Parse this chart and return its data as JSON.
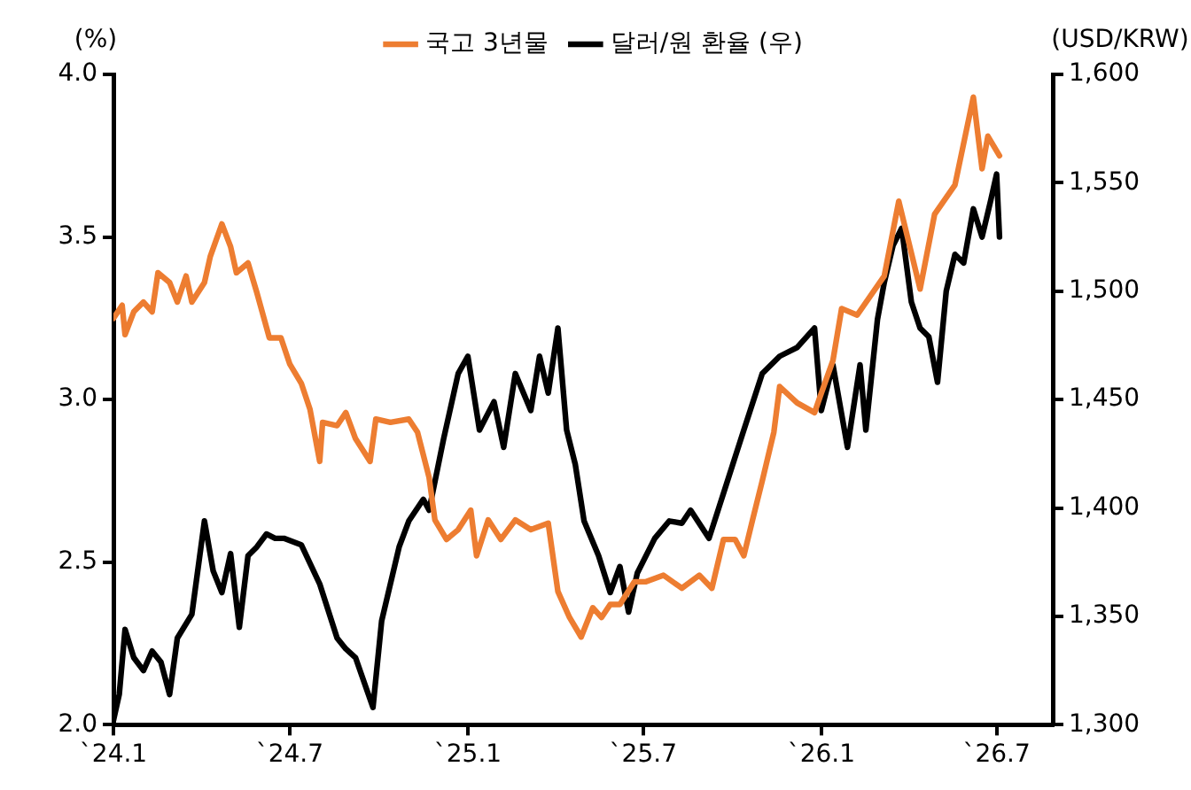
{
  "chart_data": {
    "type": "line",
    "ylabel": "(%)",
    "y2label": "(USD/KRW)",
    "legend": "top",
    "grid": false,
    "marker": "none",
    "line_style": "solid",
    "xlim": [
      "2024-01-01",
      "2026-08-28"
    ],
    "xticks": [
      {
        "value": "2024-01",
        "label": "`24.1"
      },
      {
        "value": "2024-07",
        "label": "`24.7"
      },
      {
        "value": "2025-01",
        "label": "`25.1"
      },
      {
        "value": "2025-07",
        "label": "`25.7"
      },
      {
        "value": "2026-01",
        "label": "`26.1"
      },
      {
        "value": "2026-07",
        "label": "`26.7"
      }
    ],
    "ylim": [
      2,
      4
    ],
    "yticks": [
      {
        "value": 2,
        "label": "2.0"
      },
      {
        "value": 2.5,
        "label": "2.5"
      },
      {
        "value": 3,
        "label": "3.0"
      },
      {
        "value": 3.5,
        "label": "3.5"
      },
      {
        "value": 4,
        "label": "4.0"
      }
    ],
    "y2lim": [
      1300,
      1600
    ],
    "y2ticks": [
      {
        "value": 1300,
        "label": "1,300"
      },
      {
        "value": 1350,
        "label": "1,350"
      },
      {
        "value": 1400,
        "label": "1,400"
      },
      {
        "value": 1450,
        "label": "1,450"
      },
      {
        "value": 1500,
        "label": "1,500"
      },
      {
        "value": 1550,
        "label": "1,550"
      },
      {
        "value": 1600,
        "label": "1,600"
      }
    ],
    "series": [
      {
        "name": "국고 3년물",
        "color": "#ed7d31",
        "x": [
          "2024-01-01",
          "2024-01-10",
          "2024-01-13",
          "2024-01-22",
          "2024-02-01",
          "2024-02-10",
          "2024-02-16",
          "2024-02-28",
          "2024-03-07",
          "2024-03-16",
          "2024-03-22",
          "2024-04-04",
          "2024-04-10",
          "2024-04-22",
          "2024-05-01",
          "2024-05-07",
          "2024-05-19",
          "2024-05-28",
          "2024-06-10",
          "2024-06-22",
          "2024-07-01",
          "2024-07-13",
          "2024-07-22",
          "2024-08-01",
          "2024-08-04",
          "2024-08-19",
          "2024-08-28",
          "2024-09-07",
          "2024-09-22",
          "2024-09-28",
          "2024-10-13",
          "2024-11-01",
          "2024-11-10",
          "2024-11-22",
          "2024-11-28",
          "2024-12-10",
          "2024-12-22",
          "2025-01-04",
          "2025-01-10",
          "2025-01-22",
          "2025-02-04",
          "2025-02-19",
          "2025-03-07",
          "2025-03-25",
          "2025-04-04",
          "2025-04-16",
          "2025-04-28",
          "2025-05-10",
          "2025-05-19",
          "2025-05-28",
          "2025-06-07",
          "2025-06-22",
          "2025-07-04",
          "2025-07-22",
          "2025-08-10",
          "2025-08-28",
          "2025-09-10",
          "2025-09-22",
          "2025-10-04",
          "2025-10-13",
          "2025-10-22",
          "2025-11-01",
          "2025-11-13",
          "2025-11-19",
          "2025-12-07",
          "2025-12-25",
          "2026-01-01",
          "2026-01-13",
          "2026-01-22",
          "2026-02-07",
          "2026-03-07",
          "2026-03-22",
          "2026-04-13",
          "2026-04-28",
          "2026-05-19",
          "2026-06-07",
          "2026-06-16",
          "2026-06-22",
          "2026-07-04"
        ],
        "values": [
          3.25,
          3.29,
          3.2,
          3.27,
          3.3,
          3.27,
          3.39,
          3.36,
          3.3,
          3.38,
          3.3,
          3.36,
          3.44,
          3.54,
          3.47,
          3.39,
          3.42,
          3.33,
          3.19,
          3.19,
          3.11,
          3.05,
          2.97,
          2.81,
          2.93,
          2.92,
          2.96,
          2.88,
          2.81,
          2.94,
          2.93,
          2.94,
          2.9,
          2.76,
          2.63,
          2.57,
          2.6,
          2.66,
          2.52,
          2.63,
          2.57,
          2.63,
          2.6,
          2.62,
          2.41,
          2.33,
          2.27,
          2.36,
          2.33,
          2.37,
          2.37,
          2.44,
          2.44,
          2.46,
          2.42,
          2.46,
          2.42,
          2.57,
          2.57,
          2.52,
          2.63,
          2.75,
          2.9,
          3.04,
          2.99,
          2.96,
          3.02,
          3.12,
          3.28,
          3.26,
          3.38,
          3.61,
          3.34,
          3.57,
          3.66,
          3.93,
          3.71,
          3.81,
          3.75
        ]
      },
      {
        "name": "달러/원 환율 (우)",
        "color": "#000000",
        "axis": "y2",
        "x": [
          "2024-01-01",
          "2024-01-07",
          "2024-01-13",
          "2024-01-22",
          "2024-02-01",
          "2024-02-10",
          "2024-02-19",
          "2024-02-28",
          "2024-03-07",
          "2024-03-22",
          "2024-04-04",
          "2024-04-13",
          "2024-04-22",
          "2024-05-01",
          "2024-05-10",
          "2024-05-19",
          "2024-05-28",
          "2024-06-07",
          "2024-06-16",
          "2024-06-25",
          "2024-07-13",
          "2024-08-01",
          "2024-08-19",
          "2024-08-28",
          "2024-09-07",
          "2024-09-25",
          "2024-10-04",
          "2024-10-22",
          "2024-11-01",
          "2024-11-16",
          "2024-11-22",
          "2024-12-07",
          "2024-12-22",
          "2025-01-01",
          "2025-01-13",
          "2025-01-28",
          "2025-02-07",
          "2025-02-19",
          "2025-03-07",
          "2025-03-16",
          "2025-03-25",
          "2025-04-04",
          "2025-04-13",
          "2025-04-22",
          "2025-05-01",
          "2025-05-16",
          "2025-05-28",
          "2025-06-07",
          "2025-06-16",
          "2025-06-25",
          "2025-07-13",
          "2025-07-28",
          "2025-08-10",
          "2025-08-19",
          "2025-09-07",
          "2025-09-25",
          "2025-10-13",
          "2025-11-01",
          "2025-11-19",
          "2025-12-07",
          "2025-12-25",
          "2026-01-01",
          "2026-01-13",
          "2026-01-28",
          "2026-02-10",
          "2026-02-16",
          "2026-02-28",
          "2026-03-07",
          "2026-03-16",
          "2026-03-25",
          "2026-04-04",
          "2026-04-13",
          "2026-04-22",
          "2026-05-01",
          "2026-05-10",
          "2026-05-19",
          "2026-05-28",
          "2026-06-07",
          "2026-06-16",
          "2026-06-25",
          "2026-07-01",
          "2026-07-04"
        ],
        "values": [
          1302,
          1314,
          1344,
          1331,
          1325,
          1334,
          1329,
          1314,
          1340,
          1351,
          1394,
          1371,
          1361,
          1379,
          1345,
          1378,
          1382,
          1388,
          1386,
          1386,
          1383,
          1365,
          1340,
          1335,
          1331,
          1308,
          1348,
          1382,
          1394,
          1404,
          1399,
          1432,
          1462,
          1470,
          1436,
          1449,
          1428,
          1462,
          1445,
          1470,
          1453,
          1483,
          1436,
          1420,
          1394,
          1378,
          1361,
          1373,
          1352,
          1370,
          1386,
          1394,
          1393,
          1399,
          1386,
          1411,
          1436,
          1462,
          1470,
          1474,
          1483,
          1445,
          1466,
          1428,
          1466,
          1436,
          1487,
          1504,
          1521,
          1529,
          1495,
          1483,
          1479,
          1458,
          1500,
          1517,
          1513,
          1538,
          1525,
          1542,
          1554,
          1525
        ]
      }
    ]
  }
}
